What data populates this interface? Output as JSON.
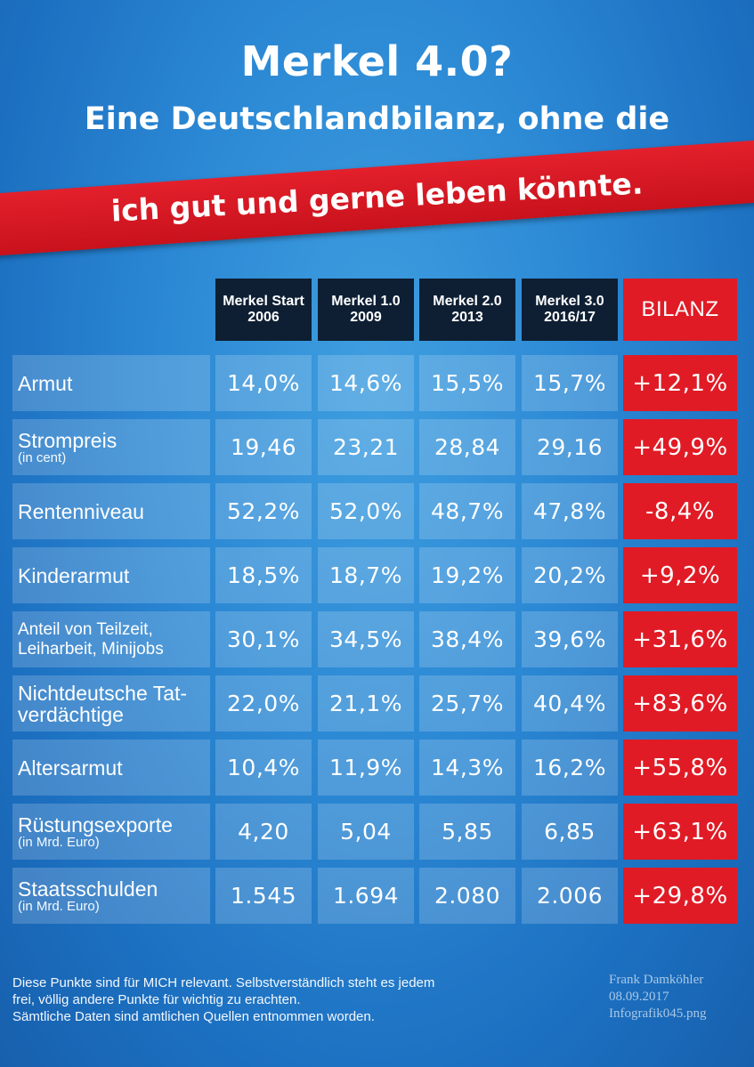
{
  "header": {
    "title": "Merkel 4.0?",
    "subtitle": "Eine Deutschlandbilanz, ohne die",
    "banner": "ich gut und gerne leben könnte."
  },
  "columns": [
    {
      "line1": "Merkel Start",
      "line2": "2006"
    },
    {
      "line1": "Merkel 1.0",
      "line2": "2009"
    },
    {
      "line1": "Merkel 2.0",
      "line2": "2013"
    },
    {
      "line1": "Merkel 3.0",
      "line2": "2016/17"
    },
    {
      "line1": "BILANZ",
      "line2": ""
    }
  ],
  "rows": [
    {
      "label": "Armut",
      "sub": "",
      "values": [
        "14,0%",
        "14,6%",
        "15,5%",
        "15,7%"
      ],
      "bilanz": "+12,1%"
    },
    {
      "label": "Strompreis",
      "sub": "(in cent)",
      "values": [
        "19,46",
        "23,21",
        "28,84",
        "29,16"
      ],
      "bilanz": "+49,9%"
    },
    {
      "label": "Rentenniveau",
      "sub": "",
      "values": [
        "52,2%",
        "52,0%",
        "48,7%",
        "47,8%"
      ],
      "bilanz": "-8,4%"
    },
    {
      "label": "Kinderarmut",
      "sub": "",
      "values": [
        "18,5%",
        "18,7%",
        "19,2%",
        "20,2%"
      ],
      "bilanz": "+9,2%"
    },
    {
      "label": "Anteil von Teilzeit,",
      "sub": "Leiharbeit, Minijobs",
      "values": [
        "30,1%",
        "34,5%",
        "38,4%",
        "39,6%"
      ],
      "bilanz": "+31,6%"
    },
    {
      "label": "Nichtdeutsche Tat-",
      "sub": "verdächtige",
      "values": [
        "22,0%",
        "21,1%",
        "25,7%",
        "40,4%"
      ],
      "bilanz": "+83,6%"
    },
    {
      "label": "Altersarmut",
      "sub": "",
      "values": [
        "10,4%",
        "11,9%",
        "14,3%",
        "16,2%"
      ],
      "bilanz": "+55,8%"
    },
    {
      "label": "Rüstungsexporte",
      "sub": "(in Mrd. Euro)",
      "values": [
        "4,20",
        "5,04",
        "5,85",
        "6,85"
      ],
      "bilanz": "+63,1%"
    },
    {
      "label": "Staatsschulden",
      "sub": "(in Mrd. Euro)",
      "values": [
        "1.545",
        "1.694",
        "2.080",
        "2.006"
      ],
      "bilanz": "+29,8%"
    }
  ],
  "footer": {
    "line1": "Diese Punkte sind für MICH relevant. Selbstverständlich steht es jedem",
    "line2": "frei, völlig andere Punkte für wichtig zu erachten.",
    "line3": "Sämtliche Daten sind amtlichen Quellen entnommen worden."
  },
  "signature": {
    "author": "Frank Damköhler",
    "date": "08.09.2017",
    "file": "Infografik045.png"
  },
  "colors": {
    "background": "#2b88d4",
    "accent_red": "#e01b25",
    "header_dark": "#0e1f33"
  }
}
